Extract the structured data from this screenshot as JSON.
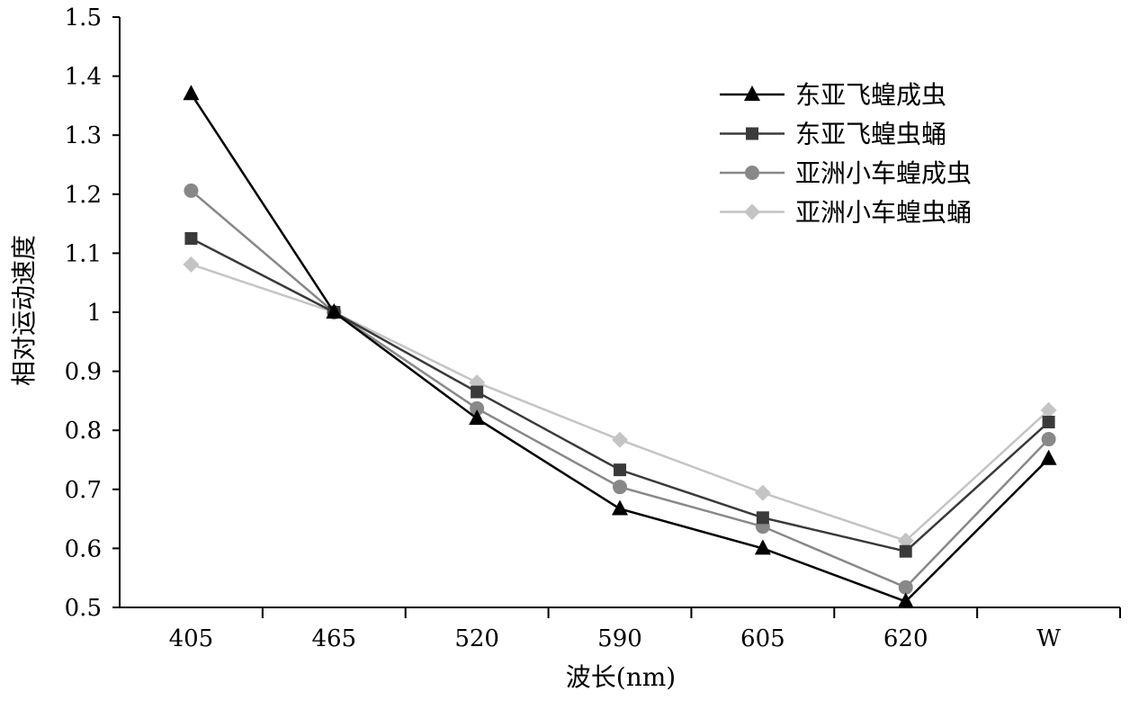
{
  "chart_data": {
    "type": "line",
    "title": "",
    "xlabel": "波长(nm)",
    "ylabel": "相对运动速度",
    "categories": [
      "405",
      "465",
      "520",
      "590",
      "605",
      "620",
      "W"
    ],
    "ylim": [
      0.5,
      1.5
    ],
    "yticks": [
      "0.5",
      "0.6",
      "0.7",
      "0.8",
      "0.9",
      "1",
      "1.1",
      "1.2",
      "1.3",
      "1.4",
      "1.5"
    ],
    "grid": false,
    "legend_position": "top-right",
    "series": [
      {
        "name": "东亚飞蝗成虫",
        "marker": "triangle",
        "color": "#000000",
        "values": [
          1.37,
          1.0,
          0.82,
          0.667,
          0.6,
          0.51,
          0.752
        ]
      },
      {
        "name": "东亚飞蝗虫蛹",
        "marker": "square",
        "color": "#3a3a3a",
        "values": [
          1.125,
          1.0,
          0.865,
          0.733,
          0.652,
          0.595,
          0.814
        ]
      },
      {
        "name": "亚洲小车蝗成虫",
        "marker": "circle",
        "color": "#888888",
        "values": [
          1.206,
          1.0,
          0.837,
          0.704,
          0.637,
          0.534,
          0.785
        ]
      },
      {
        "name": "亚洲小车蝗虫蛹",
        "marker": "diamond",
        "color": "#c4c4c4",
        "values": [
          1.081,
          1.0,
          0.881,
          0.784,
          0.694,
          0.613,
          0.834
        ]
      }
    ]
  }
}
